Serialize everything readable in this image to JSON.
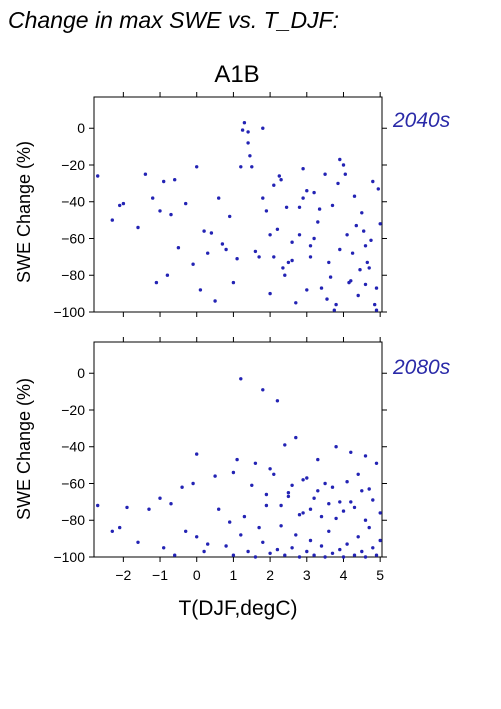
{
  "figure": {
    "title": "Change in max SWE vs. T_DJF:",
    "scenario": "A1B",
    "xlabel": "T(DJF,degC)"
  },
  "chart_data": [
    {
      "type": "scatter",
      "period": "2040s",
      "ylabel": "SWE Change (%)",
      "xlim": [
        -2.8,
        5.05
      ],
      "ylim": [
        -100,
        17
      ],
      "xticks": [
        -2,
        -1,
        0,
        1,
        2,
        3,
        4,
        5
      ],
      "yticks": [
        0,
        -20,
        -40,
        -60,
        -80,
        -100
      ],
      "marker_color": "#2323b4",
      "x": [
        -2.7,
        -2.3,
        -2.1,
        -2.0,
        -1.6,
        -1.4,
        -1.2,
        -1.1,
        -1.0,
        -0.9,
        -0.8,
        -0.7,
        -0.6,
        -0.5,
        -0.3,
        -0.1,
        0.0,
        0.1,
        0.2,
        0.3,
        0.4,
        0.5,
        0.6,
        0.7,
        0.8,
        0.9,
        1.0,
        1.1,
        1.2,
        1.3,
        1.4,
        1.5,
        1.6,
        1.7,
        1.8,
        1.9,
        2.0,
        2.1,
        2.2,
        2.3,
        2.4,
        2.5,
        2.6,
        2.7,
        2.8,
        2.9,
        3.0,
        3.1,
        3.2,
        3.3,
        3.4,
        3.5,
        3.6,
        3.7,
        3.8,
        3.9,
        4.0,
        4.1,
        4.2,
        4.3,
        4.4,
        4.5,
        4.6,
        4.7,
        4.8,
        4.9,
        5.0,
        1.25,
        1.4,
        1.8,
        2.1,
        2.25,
        2.45,
        2.8,
        1.45,
        2.0,
        2.35,
        3.0,
        3.55,
        3.9,
        4.25,
        4.6,
        4.95,
        3.2,
        3.75,
        4.15,
        4.55,
        4.85,
        2.6,
        3.35,
        4.05,
        4.45,
        4.75,
        2.9,
        3.65,
        4.35,
        4.9,
        3.1,
        3.85,
        4.65
      ],
      "y": [
        -26,
        -50,
        -42,
        -41,
        -54,
        -25,
        -38,
        -84,
        -45,
        -29,
        -80,
        -47,
        -28,
        -65,
        -41,
        -74,
        -21,
        -88,
        -56,
        -68,
        -57,
        -94,
        -38,
        -63,
        -66,
        -48,
        -84,
        -71,
        -21,
        3,
        -2,
        -21,
        -67,
        -70,
        -38,
        -45,
        -90,
        -31,
        -55,
        -28,
        -80,
        -73,
        -62,
        -95,
        -43,
        -22,
        -34,
        -70,
        -60,
        -51,
        -87,
        -25,
        -73,
        -42,
        -96,
        -66,
        -20,
        -58,
        -83,
        -37,
        -91,
        -46,
        -64,
        -76,
        -29,
        -99,
        -52,
        -1,
        -8,
        0,
        -70,
        -26,
        -43,
        -58,
        -15,
        -58,
        -76,
        -88,
        -93,
        -17,
        -68,
        -85,
        -33,
        -35,
        -99,
        -84,
        -56,
        -96,
        -72,
        -44,
        -25,
        -77,
        -61,
        -38,
        -81,
        -53,
        -87,
        -64,
        -30,
        -73
      ]
    },
    {
      "type": "scatter",
      "period": "2080s",
      "ylabel": "SWE Change (%)",
      "xlim": [
        -2.8,
        5.05
      ],
      "ylim": [
        -100,
        17
      ],
      "xticks": [
        -2,
        -1,
        0,
        1,
        2,
        3,
        4,
        5
      ],
      "yticks": [
        0,
        -20,
        -40,
        -60,
        -80,
        -100
      ],
      "marker_color": "#2323b4",
      "x": [
        -2.7,
        -2.3,
        -2.1,
        -1.9,
        -1.6,
        -1.3,
        -1.0,
        -0.9,
        -0.7,
        -0.6,
        -0.4,
        -0.3,
        -0.1,
        0.0,
        0.2,
        0.3,
        0.5,
        0.6,
        0.8,
        0.9,
        1.0,
        1.1,
        1.2,
        1.3,
        1.4,
        1.5,
        1.6,
        1.7,
        1.8,
        1.9,
        2.0,
        2.1,
        2.2,
        2.3,
        2.4,
        2.5,
        2.6,
        2.7,
        2.8,
        2.9,
        3.0,
        3.1,
        3.2,
        3.3,
        3.4,
        3.5,
        3.6,
        3.7,
        3.8,
        3.9,
        4.0,
        4.1,
        4.2,
        4.3,
        4.4,
        4.5,
        4.6,
        4.7,
        4.8,
        4.9,
        5.0,
        1.2,
        1.8,
        2.2,
        2.7,
        3.8,
        4.6,
        0.0,
        1.6,
        2.4,
        3.3,
        4.2,
        4.9,
        2.0,
        2.9,
        3.5,
        4.4,
        1.0,
        2.6,
        3.0,
        3.7,
        4.1,
        4.7,
        1.9,
        2.5,
        3.2,
        3.9,
        4.5,
        4.8,
        2.3,
        3.1,
        3.6,
        4.0,
        4.3,
        2.8,
        3.4,
        4.6,
        5.0
      ],
      "y": [
        -72,
        -86,
        -84,
        -73,
        -92,
        -74,
        -68,
        -95,
        -71,
        -99,
        -62,
        -86,
        -60,
        -89,
        -97,
        -93,
        -56,
        -74,
        -94,
        -81,
        -99,
        -47,
        -88,
        -78,
        -97,
        -61,
        -100,
        -84,
        -92,
        -72,
        -98,
        -55,
        -96,
        -83,
        -99,
        -67,
        -95,
        -88,
        -100,
        -76,
        -97,
        -91,
        -99,
        -64,
        -94,
        -100,
        -86,
        -98,
        -79,
        -96,
        -100,
        -93,
        -70,
        -99,
        -89,
        -97,
        -100,
        -84,
        -95,
        -99,
        -91,
        -3,
        -9,
        -15,
        -35,
        -40,
        -45,
        -44,
        -49,
        -39,
        -47,
        -43,
        -49,
        -52,
        -58,
        -60,
        -55,
        -54,
        -61,
        -57,
        -62,
        -59,
        -63,
        -66,
        -65,
        -68,
        -70,
        -64,
        -69,
        -72,
        -74,
        -71,
        -75,
        -73,
        -77,
        -78,
        -80,
        -76
      ]
    }
  ]
}
